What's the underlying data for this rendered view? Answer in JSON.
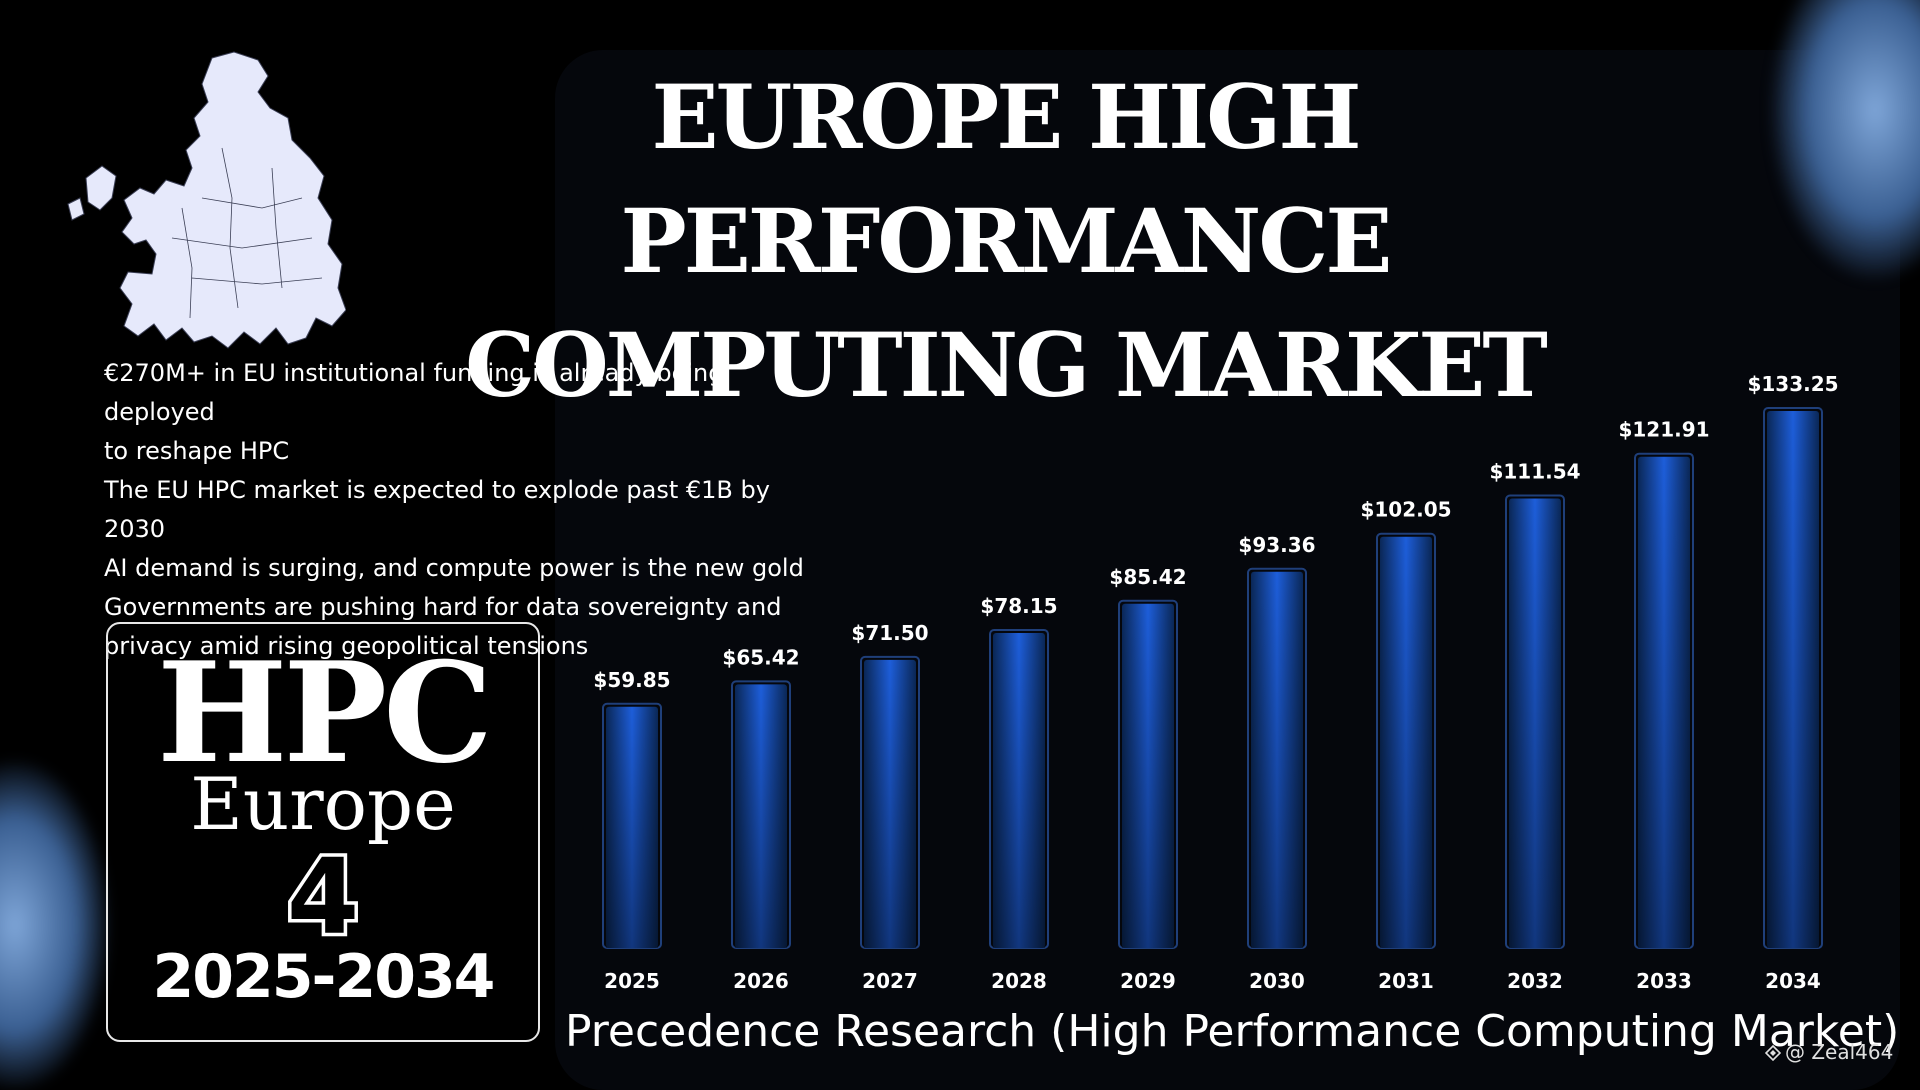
{
  "title": {
    "line1": "EUROPE HIGH PERFORMANCE",
    "line2": "COMPUTING MARKET"
  },
  "bullets": [
    "€270M+ in EU institutional funding is already being deployed",
    "to reshape HPC",
    "The EU HPC market is expected to explode past €1B by 2030",
    "AI demand is surging, and compute power is the new gold",
    "Governments are pushing hard for data sovereignty and",
    "privacy amid rising geopolitical tensions"
  ],
  "badge": {
    "main": "HPC",
    "region": "Europe",
    "number": "4",
    "years": "2025-2034"
  },
  "source": "Precedence Research (High Performance Computing Market)",
  "watermark": "@ Zeal464",
  "colors": {
    "background": "#000000",
    "panel": "#05070c",
    "bar_light": "#1f63e6",
    "bar_dark": "#0b2a5c",
    "text": "#ffffff"
  },
  "icons": [
    "europe-map-icon",
    "watermark-diamond-icon"
  ],
  "chart_data": {
    "type": "bar",
    "categories": [
      "2025",
      "2026",
      "2027",
      "2028",
      "2029",
      "2030",
      "2031",
      "2032",
      "2033",
      "2034"
    ],
    "values": [
      59.85,
      65.42,
      71.5,
      78.15,
      85.42,
      93.36,
      102.05,
      111.54,
      121.91,
      133.25
    ],
    "labels": [
      "$59.85",
      "$65.42",
      "$71.50",
      "$78.15",
      "$85.42",
      "$93.36",
      "$102.05",
      "$111.54",
      "$121.91",
      "$133.25"
    ],
    "title": "",
    "xlabel": "",
    "ylabel": "",
    "grid": false,
    "legend": "none"
  }
}
